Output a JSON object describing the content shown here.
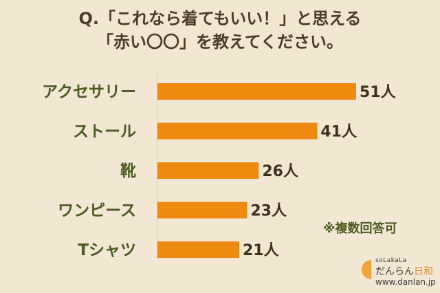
{
  "title": {
    "line1": "Q.「これなら着てもいい！」と思える",
    "line2": "「赤い〇〇」を教えてください。"
  },
  "note": "※複数回答可",
  "brand": {
    "small": "soLakaLa",
    "name_main": "だんらん",
    "name_accent": "日和",
    "url": "www.danlan.jp"
  },
  "colors": {
    "background": "#f2e7d3",
    "bar": "#ee8a10",
    "label": "#4a5a1f",
    "value": "#3f2f1f",
    "title": "#4e3b26"
  },
  "chart_data": {
    "type": "bar",
    "orientation": "horizontal",
    "categories": [
      "アクセサリー",
      "ストール",
      "靴",
      "ワンピース",
      "Tシャツ"
    ],
    "values": [
      51,
      41,
      26,
      23,
      21
    ],
    "value_suffix": "人",
    "xlim": [
      0,
      51
    ],
    "grid": false,
    "legend": "none"
  }
}
